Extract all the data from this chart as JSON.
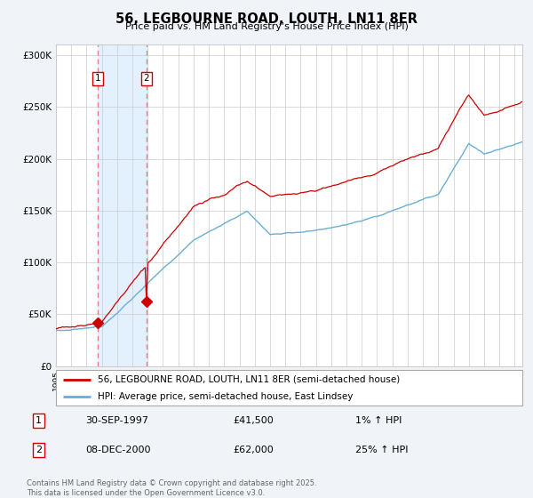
{
  "title": "56, LEGBOURNE ROAD, LOUTH, LN11 8ER",
  "subtitle": "Price paid vs. HM Land Registry's House Price Index (HPI)",
  "legend_line1": "56, LEGBOURNE ROAD, LOUTH, LN11 8ER (semi-detached house)",
  "legend_line2": "HPI: Average price, semi-detached house, East Lindsey",
  "footer": "Contains HM Land Registry data © Crown copyright and database right 2025.\nThis data is licensed under the Open Government Licence v3.0.",
  "price_color": "#cc0000",
  "hpi_color": "#6aaed6",
  "sale1_date_label": "30-SEP-1997",
  "sale1_price": 41500,
  "sale1_price_label": "£41,500",
  "sale1_hpi_label": "1% ↑ HPI",
  "sale2_date_label": "08-DEC-2000",
  "sale2_price": 62000,
  "sale2_price_label": "£62,000",
  "sale2_hpi_label": "25% ↑ HPI",
  "ylim": [
    0,
    310000
  ],
  "yticks": [
    0,
    50000,
    100000,
    150000,
    200000,
    250000,
    300000
  ],
  "ytick_labels": [
    "£0",
    "£50K",
    "£100K",
    "£150K",
    "£200K",
    "£250K",
    "£300K"
  ],
  "xstart": 1995.0,
  "xend": 2025.5,
  "sale1_x": 1997.75,
  "sale2_x": 2000.92,
  "background_color": "#f0f4f8",
  "plot_bg": "#ffffff",
  "grid_color": "#cccccc",
  "span_color": "#ddeeff",
  "vline_color": "#e08080"
}
